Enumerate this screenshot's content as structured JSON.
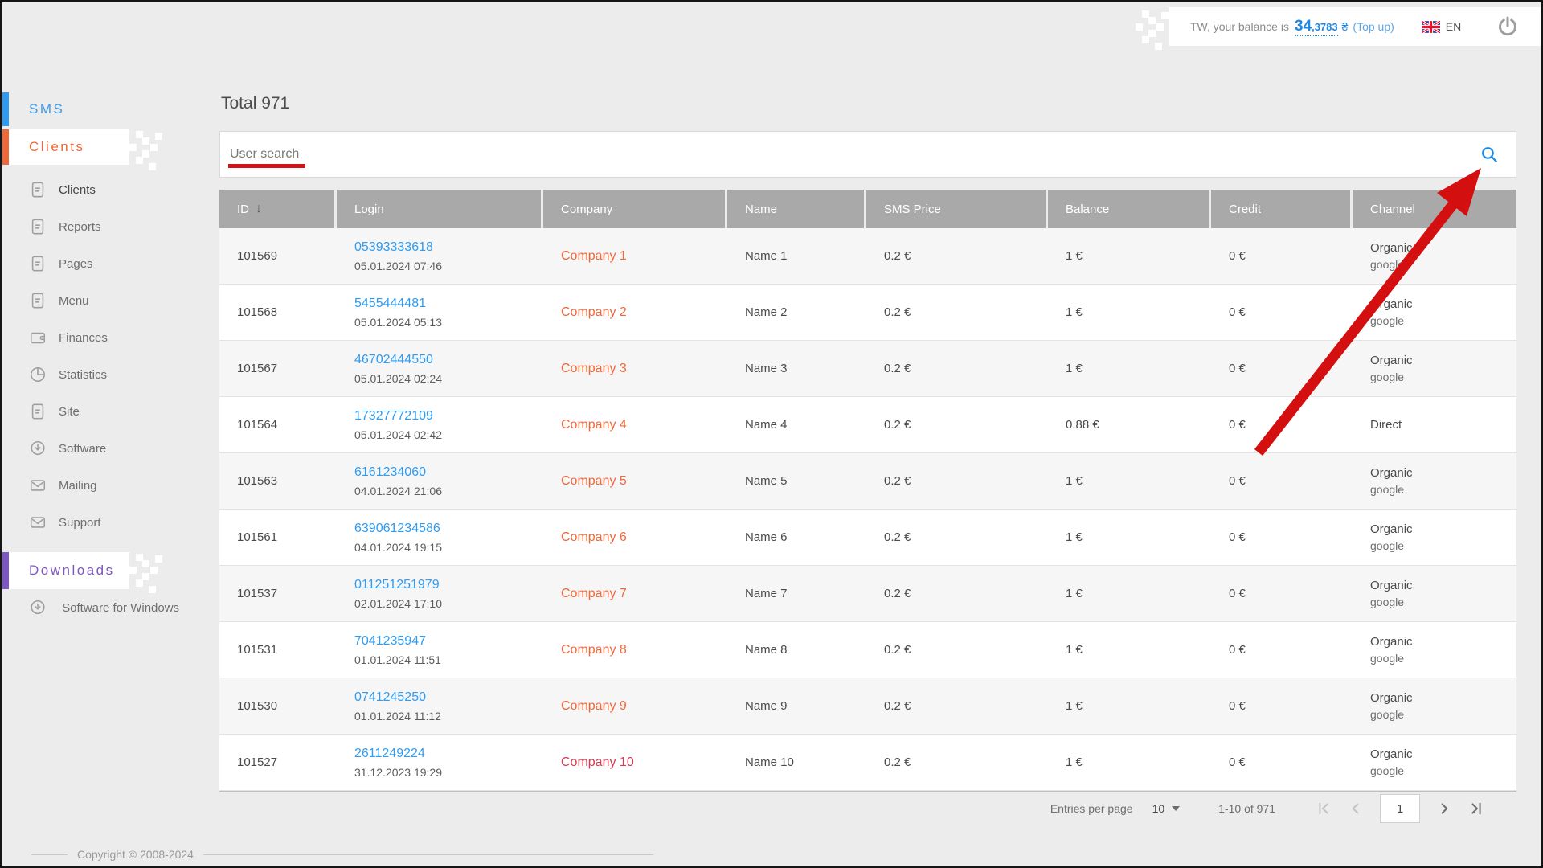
{
  "topbar": {
    "balance_prefix": "TW, your balance is",
    "balance_main": "34",
    "balance_fraction": ",3783",
    "currency": "₴",
    "topup_label": "(Top up)",
    "language": "EN"
  },
  "sidebar": {
    "sms_label": "SMS",
    "clients_label": "Clients",
    "downloads_label": "Downloads",
    "menu_items": [
      {
        "label": "Clients",
        "icon": "document",
        "active": true
      },
      {
        "label": "Reports",
        "icon": "document",
        "active": false
      },
      {
        "label": "Pages",
        "icon": "document",
        "active": false
      },
      {
        "label": "Menu",
        "icon": "document",
        "active": false
      },
      {
        "label": "Finances",
        "icon": "wallet",
        "active": false
      },
      {
        "label": "Statistics",
        "icon": "pie-chart",
        "active": false
      },
      {
        "label": "Site",
        "icon": "document",
        "active": false
      },
      {
        "label": "Software",
        "icon": "download",
        "active": false
      },
      {
        "label": "Mailing",
        "icon": "envelope",
        "active": false
      },
      {
        "label": "Support",
        "icon": "envelope",
        "active": false
      }
    ],
    "downloads_items": [
      {
        "label": "Software for Windows",
        "icon": "download"
      }
    ]
  },
  "main": {
    "title": "Total 971",
    "search": {
      "placeholder": "User search"
    },
    "table": {
      "columns": [
        "ID",
        "Login",
        "Company",
        "Name",
        "SMS Price",
        "Balance",
        "Credit",
        "Channel"
      ],
      "sorted_column": "ID",
      "sort_icon": "↓",
      "rows": [
        {
          "id": "101569",
          "login": "05393333618",
          "date": "05.01.2024 07:46",
          "company": "Company 1",
          "company_style": "orange",
          "name": "Name 1",
          "sms_price": "0.2 €",
          "balance": "1 €",
          "credit": "0 €",
          "channel": "Organic",
          "channel_sub": "google"
        },
        {
          "id": "101568",
          "login": "5455444481",
          "date": "05.01.2024 05:13",
          "company": "Company 2",
          "company_style": "orange",
          "name": "Name 2",
          "sms_price": "0.2 €",
          "balance": "1 €",
          "credit": "0 €",
          "channel": "Organic",
          "channel_sub": "google"
        },
        {
          "id": "101567",
          "login": "46702444550",
          "date": "05.01.2024 02:24",
          "company": "Company 3",
          "company_style": "orange",
          "name": "Name 3",
          "sms_price": "0.2 €",
          "balance": "1 €",
          "credit": "0 €",
          "channel": "Organic",
          "channel_sub": "google"
        },
        {
          "id": "101564",
          "login": "17327772109",
          "date": "05.01.2024 02:42",
          "company": "Company 4",
          "company_style": "orange",
          "name": "Name 4",
          "sms_price": "0.2 €",
          "balance": "0.88 €",
          "credit": "0 €",
          "channel": "Direct",
          "channel_sub": ""
        },
        {
          "id": "101563",
          "login": "6161234060",
          "date": "04.01.2024 21:06",
          "company": "Company 5",
          "company_style": "orange",
          "name": "Name 5",
          "sms_price": "0.2 €",
          "balance": "1 €",
          "credit": "0 €",
          "channel": "Organic",
          "channel_sub": "google"
        },
        {
          "id": "101561",
          "login": "639061234586",
          "date": "04.01.2024 19:15",
          "company": "Company 6",
          "company_style": "orange",
          "name": "Name 6",
          "sms_price": "0.2 €",
          "balance": "1 €",
          "credit": "0 €",
          "channel": "Organic",
          "channel_sub": "google"
        },
        {
          "id": "101537",
          "login": "011251251979",
          "date": "02.01.2024 17:10",
          "company": "Company 7",
          "company_style": "orange",
          "name": "Name 7",
          "sms_price": "0.2 €",
          "balance": "1 €",
          "credit": "0 €",
          "channel": "Organic",
          "channel_sub": "google"
        },
        {
          "id": "101531",
          "login": "7041235947",
          "date": "01.01.2024 11:51",
          "company": "Company 8",
          "company_style": "orange",
          "name": "Name 8",
          "sms_price": "0.2 €",
          "balance": "1 €",
          "credit": "0 €",
          "channel": "Organic",
          "channel_sub": "google"
        },
        {
          "id": "101530",
          "login": "0741245250",
          "date": "01.01.2024 11:12",
          "company": "Company 9",
          "company_style": "orange",
          "name": "Name 9",
          "sms_price": "0.2 €",
          "balance": "1 €",
          "credit": "0 €",
          "channel": "Organic",
          "channel_sub": "google"
        },
        {
          "id": "101527",
          "login": "2611249224",
          "date": "31.12.2023 19:29",
          "company": "Company 10",
          "company_style": "red",
          "name": "Name 10",
          "sms_price": "0.2 €",
          "balance": "1 €",
          "credit": "0 €",
          "channel": "Organic",
          "channel_sub": "google"
        }
      ]
    },
    "pagination": {
      "entries_label": "Entries per page",
      "page_size": "10",
      "range_label": "1-10 of 971",
      "current_page": "1"
    }
  },
  "footer": {
    "copyright": "Copyright © 2008-2024"
  },
  "colors": {
    "accent_orange": "#f0683a",
    "accent_red": "#db3853",
    "accent_blue": "#2f9bf0",
    "accent_purple": "#7e57c2",
    "link_blue": "#2d9cf4",
    "annotation_red": "#d40f0f",
    "header_gray": "#a9a9a9"
  }
}
